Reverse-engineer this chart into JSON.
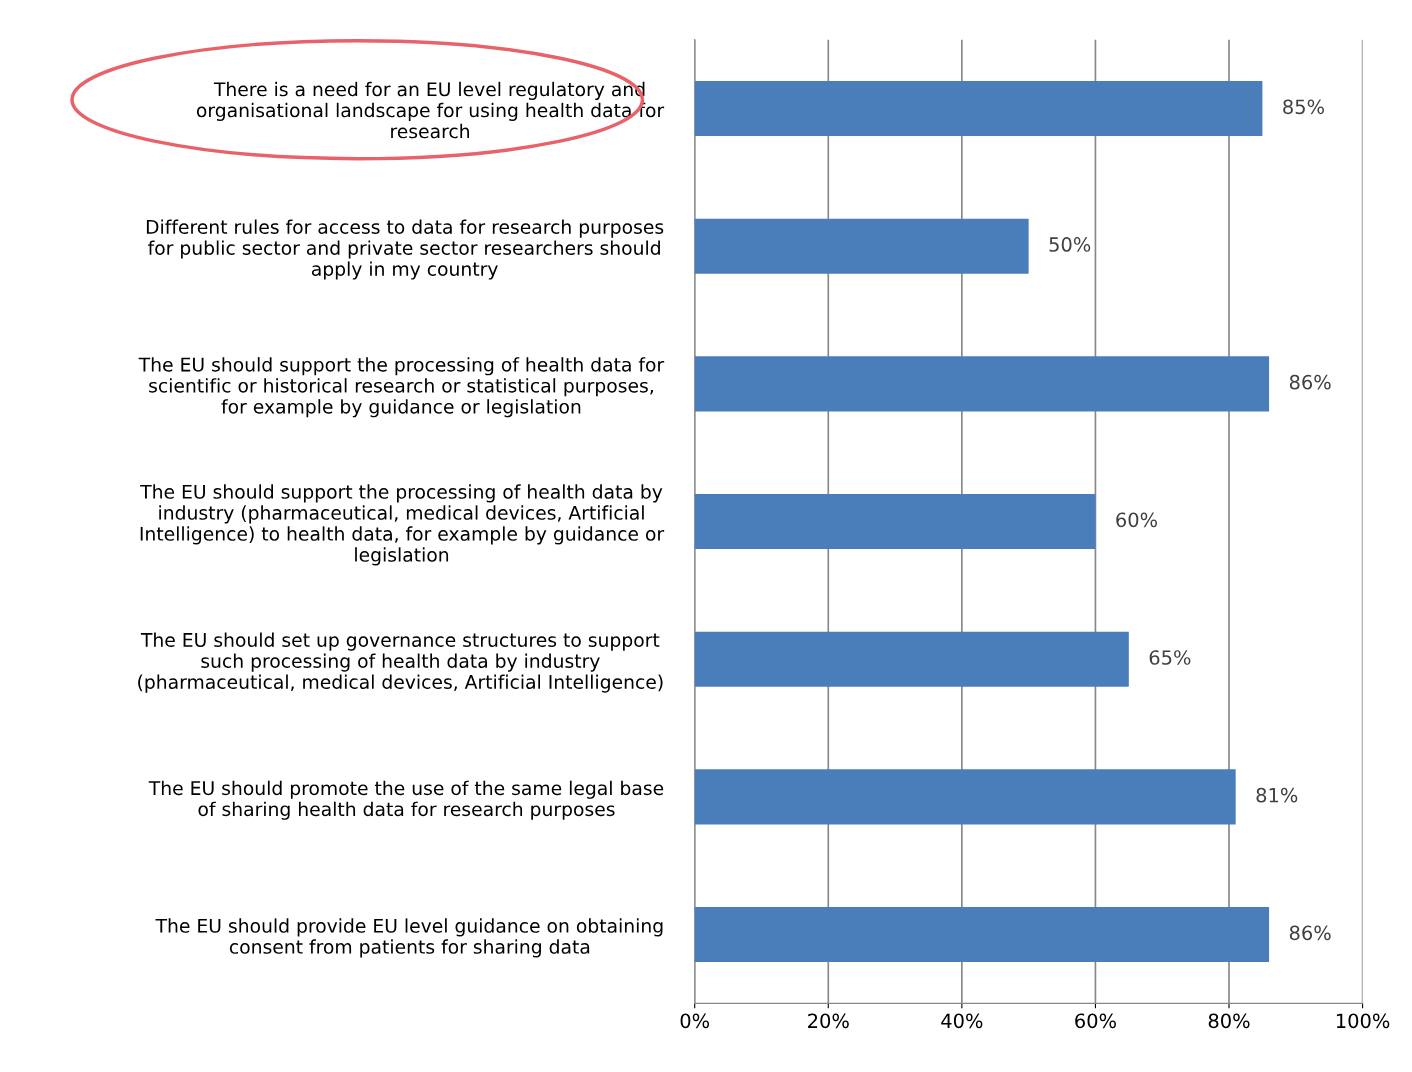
{
  "chart_data": {
    "type": "bar",
    "orientation": "horizontal",
    "categories": [
      "There is a need for an EU level regulatory and\norganisational landscape for using health data for\nresearch",
      "Different rules for access to data for research purposes\nfor public sector and private sector researchers should\napply in my country",
      "The EU should support the processing of health data for\nscientific or historical research or statistical purposes,\nfor example by guidance or legislation",
      "The EU should support the processing of health data by\nindustry (pharmaceutical, medical devices, Artificial\nIntelligence) to health data, for example by guidance or\nlegislation",
      "The EU should set up governance structures to support\nsuch processing of health data by industry\n(pharmaceutical, medical devices, Artificial Intelligence)",
      "The EU should promote the use of the same legal base\nof sharing health data for research purposes",
      "The EU should provide EU level guidance on obtaining\nconsent from patients for sharing data"
    ],
    "values": [
      85,
      50,
      86,
      60,
      65,
      81,
      86
    ],
    "value_labels": [
      "85%",
      "50%",
      "86%",
      "60%",
      "65%",
      "81%",
      "86%"
    ],
    "color": "#4a7ebb",
    "xlim": [
      0,
      100
    ],
    "xticks": [
      {
        "value": 0,
        "label": "0%"
      },
      {
        "value": 20,
        "label": "20%"
      },
      {
        "value": 40,
        "label": "40%"
      },
      {
        "value": 60,
        "label": "60%"
      },
      {
        "value": 80,
        "label": "80%"
      },
      {
        "value": 100,
        "label": "100%"
      }
    ],
    "grid": "x",
    "legend": false
  }
}
